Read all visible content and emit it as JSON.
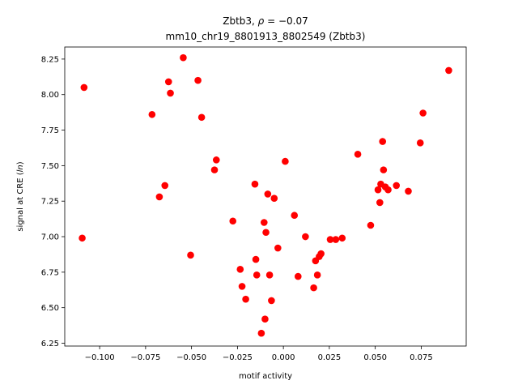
{
  "chart_data": {
    "type": "scatter",
    "title_line1_name": "Zbtb3, ",
    "title_line1_rho_symbol": "ρ",
    "title_line1_rho_value": " = −0.07",
    "title_line2": "mm10_chr19_8801913_8802549 (Zbtb3)",
    "xlabel": "motif activity",
    "ylabel_prefix": "signal at CRE (",
    "ylabel_italic": "ln",
    "ylabel_suffix": ")",
    "xlim": [
      -0.119,
      0.0995
    ],
    "ylim": [
      6.23,
      8.335
    ],
    "xticks": [
      -0.1,
      -0.075,
      -0.05,
      -0.025,
      0.0,
      0.025,
      0.05,
      0.075
    ],
    "xtick_labels": [
      "−0.100",
      "−0.075",
      "−0.050",
      "−0.025",
      "0.000",
      "0.025",
      "0.050",
      "0.075"
    ],
    "yticks": [
      6.25,
      6.5,
      6.75,
      7.0,
      7.25,
      7.5,
      7.75,
      8.0,
      8.25
    ],
    "ytick_labels": [
      "6.25",
      "6.50",
      "6.75",
      "7.00",
      "7.25",
      "7.50",
      "7.75",
      "8.00",
      "8.25"
    ],
    "marker_color": "#ff0000",
    "points": [
      {
        "x": -0.1095,
        "y": 6.99
      },
      {
        "x": -0.1085,
        "y": 8.05
      },
      {
        "x": -0.0715,
        "y": 7.86
      },
      {
        "x": -0.0675,
        "y": 7.28
      },
      {
        "x": -0.0645,
        "y": 7.36
      },
      {
        "x": -0.0625,
        "y": 8.09
      },
      {
        "x": -0.0615,
        "y": 8.01
      },
      {
        "x": -0.0545,
        "y": 8.26
      },
      {
        "x": -0.0505,
        "y": 6.87
      },
      {
        "x": -0.0465,
        "y": 8.1
      },
      {
        "x": -0.0445,
        "y": 7.84
      },
      {
        "x": -0.0375,
        "y": 7.47
      },
      {
        "x": -0.0365,
        "y": 7.54
      },
      {
        "x": -0.0275,
        "y": 7.11
      },
      {
        "x": -0.0235,
        "y": 6.77
      },
      {
        "x": -0.0225,
        "y": 6.65
      },
      {
        "x": -0.0205,
        "y": 6.56
      },
      {
        "x": -0.0155,
        "y": 7.37
      },
      {
        "x": -0.015,
        "y": 6.84
      },
      {
        "x": -0.0145,
        "y": 6.73
      },
      {
        "x": -0.012,
        "y": 6.32
      },
      {
        "x": -0.0105,
        "y": 7.1
      },
      {
        "x": -0.01,
        "y": 6.42
      },
      {
        "x": -0.0095,
        "y": 7.03
      },
      {
        "x": -0.0085,
        "y": 7.3
      },
      {
        "x": -0.0075,
        "y": 6.73
      },
      {
        "x": -0.0065,
        "y": 6.55
      },
      {
        "x": -0.005,
        "y": 7.27
      },
      {
        "x": -0.003,
        "y": 6.92
      },
      {
        "x": 0.001,
        "y": 7.53
      },
      {
        "x": 0.006,
        "y": 7.15
      },
      {
        "x": 0.008,
        "y": 6.72
      },
      {
        "x": 0.012,
        "y": 7.0
      },
      {
        "x": 0.0165,
        "y": 6.64
      },
      {
        "x": 0.0175,
        "y": 6.83
      },
      {
        "x": 0.0185,
        "y": 6.73
      },
      {
        "x": 0.0195,
        "y": 6.86
      },
      {
        "x": 0.0205,
        "y": 6.88
      },
      {
        "x": 0.0255,
        "y": 6.98
      },
      {
        "x": 0.0285,
        "y": 6.98
      },
      {
        "x": 0.032,
        "y": 6.99
      },
      {
        "x": 0.0405,
        "y": 7.58
      },
      {
        "x": 0.0475,
        "y": 7.08
      },
      {
        "x": 0.0515,
        "y": 7.33
      },
      {
        "x": 0.0525,
        "y": 7.24
      },
      {
        "x": 0.053,
        "y": 7.37
      },
      {
        "x": 0.054,
        "y": 7.67
      },
      {
        "x": 0.0545,
        "y": 7.47
      },
      {
        "x": 0.0555,
        "y": 7.35
      },
      {
        "x": 0.057,
        "y": 7.33
      },
      {
        "x": 0.0615,
        "y": 7.36
      },
      {
        "x": 0.068,
        "y": 7.32
      },
      {
        "x": 0.0745,
        "y": 7.66
      },
      {
        "x": 0.076,
        "y": 7.87
      },
      {
        "x": 0.09,
        "y": 8.17
      }
    ]
  }
}
